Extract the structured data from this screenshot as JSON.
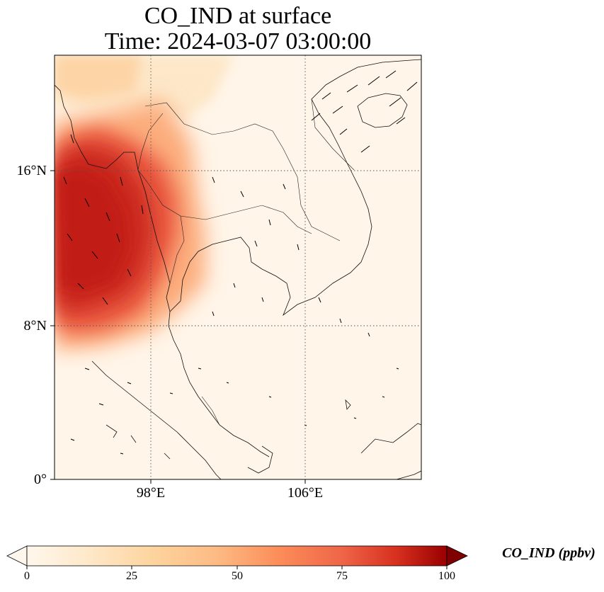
{
  "figure": {
    "title_line1": "CO_IND at surface",
    "title_line2": "Time: 2024-03-07 03:00:00"
  },
  "map": {
    "projection": "PlateCarree",
    "extent": {
      "lon_min": 93,
      "lon_max": 112,
      "lat_min": 0,
      "lat_max": 22
    },
    "gridlines": "dotted",
    "x_ticks": [
      {
        "lon": 98,
        "label": "98°E"
      },
      {
        "lon": 106,
        "label": "106°E"
      }
    ],
    "y_ticks": [
      {
        "lat": 0,
        "label": "0°"
      },
      {
        "lat": 8,
        "label": "8°N"
      },
      {
        "lat": 16,
        "label": "16°N"
      }
    ],
    "field_variable": "CO_IND",
    "field_units": "ppbv",
    "field_features": [
      {
        "description": "high CO plume over Myanmar / Bay of Bengal coast",
        "lon_min": 93,
        "lon_max": 99,
        "lat_min": 8,
        "lat_max": 18,
        "value_range": [
          60,
          85
        ]
      },
      {
        "description": "moderate values over western Thailand",
        "lon_min": 98,
        "lon_max": 101,
        "lat_min": 10,
        "lat_max": 18,
        "value_range": [
          25,
          50
        ]
      },
      {
        "description": "background values over Gulf of Thailand, Malay Peninsula, South China Sea",
        "value_range": [
          0,
          10
        ]
      }
    ],
    "wind_vectors": "shown"
  },
  "colorbar": {
    "cmap": "OrRd",
    "vmin": 0,
    "vmax": 100,
    "extend": "both",
    "tick_labels": [
      "0",
      "25",
      "50",
      "75",
      "100"
    ],
    "label": "CO_IND (ppbv)"
  }
}
